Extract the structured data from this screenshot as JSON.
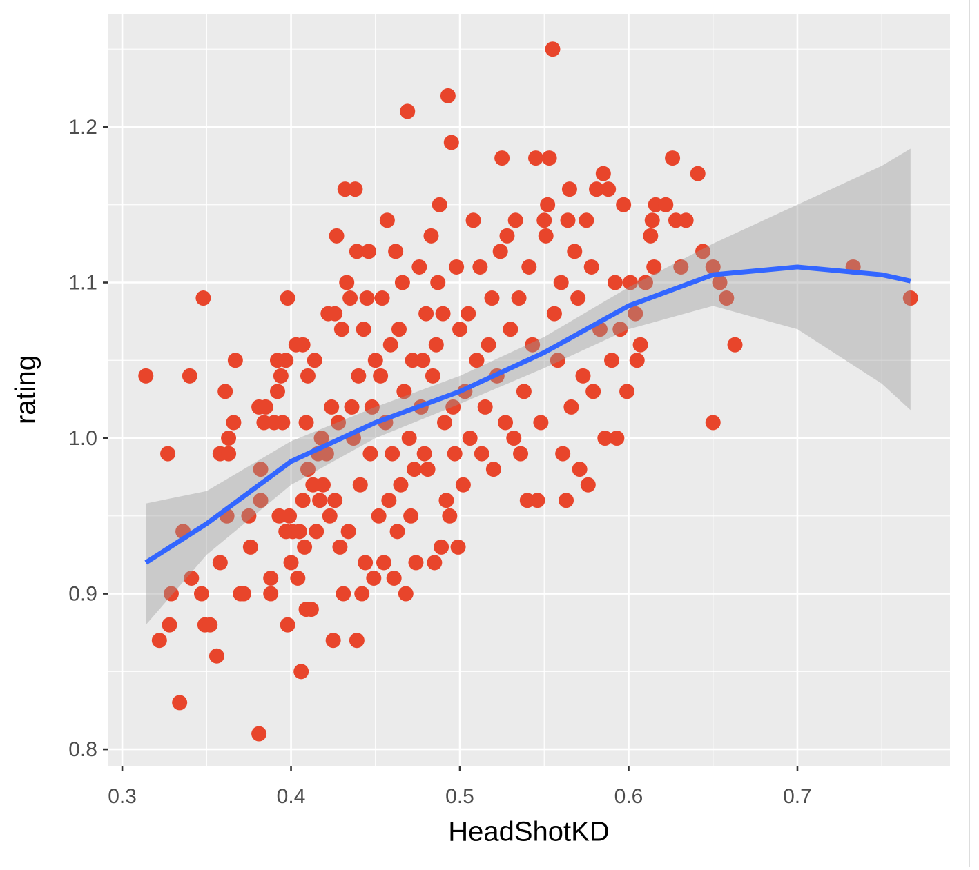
{
  "chart_data": {
    "type": "scatter",
    "x_label": "HeadShotKD",
    "y_label": "rating",
    "color": "#e8452b",
    "xlim": [
      0.2918,
      0.7904
    ],
    "ylim": [
      0.7894,
      1.2727
    ],
    "xticks": [
      0.3,
      0.4,
      0.5,
      0.6,
      0.7
    ],
    "yticks": [
      0.8,
      0.9,
      {
        "value": 1,
        "label": "1.0"
      },
      1.1,
      1.2
    ],
    "xminor": [
      0.35,
      0.45,
      0.55,
      0.65,
      0.75
    ],
    "yminor": [
      0.85,
      0.95,
      1.05,
      1.15,
      1.25
    ],
    "grid": true,
    "x": [
      0.314,
      0.327,
      0.329,
      0.328,
      0.322,
      0.334,
      0.336,
      0.34,
      0.341,
      0.347,
      0.348,
      0.349,
      0.352,
      0.356,
      0.358,
      0.358,
      0.361,
      0.362,
      0.363,
      0.363,
      0.366,
      0.367,
      0.37,
      0.372,
      0.375,
      0.376,
      0.381,
      0.382,
      0.382,
      0.381,
      0.385,
      0.384,
      0.388,
      0.388,
      0.39,
      0.392,
      0.392,
      0.393,
      0.394,
      0.395,
      0.397,
      0.397,
      0.398,
      0.398,
      0.399,
      0.4,
      0.401,
      0.403,
      0.404,
      0.405,
      0.406,
      0.407,
      0.407,
      0.408,
      0.409,
      0.409,
      0.41,
      0.41,
      0.412,
      0.413,
      0.414,
      0.415,
      0.416,
      0.417,
      0.418,
      0.419,
      0.421,
      0.422,
      0.423,
      0.424,
      0.425,
      0.426,
      0.426,
      0.427,
      0.428,
      0.429,
      0.43,
      0.431,
      0.432,
      0.433,
      0.434,
      0.435,
      0.436,
      0.437,
      0.438,
      0.439,
      0.439,
      0.44,
      0.441,
      0.442,
      0.443,
      0.444,
      0.445,
      0.446,
      0.447,
      0.448,
      0.449,
      0.45,
      0.452,
      0.453,
      0.454,
      0.455,
      0.456,
      0.457,
      0.458,
      0.459,
      0.46,
      0.461,
      0.462,
      0.463,
      0.464,
      0.465,
      0.466,
      0.467,
      0.468,
      0.469,
      0.47,
      0.471,
      0.472,
      0.473,
      0.474,
      0.476,
      0.477,
      0.478,
      0.479,
      0.48,
      0.481,
      0.483,
      0.484,
      0.485,
      0.486,
      0.487,
      0.488,
      0.489,
      0.49,
      0.491,
      0.492,
      0.493,
      0.494,
      0.495,
      0.496,
      0.497,
      0.498,
      0.499,
      0.5,
      0.502,
      0.503,
      0.505,
      0.506,
      0.508,
      0.51,
      0.512,
      0.513,
      0.515,
      0.517,
      0.519,
      0.52,
      0.522,
      0.524,
      0.525,
      0.527,
      0.528,
      0.53,
      0.532,
      0.533,
      0.535,
      0.536,
      0.538,
      0.54,
      0.541,
      0.543,
      0.545,
      0.546,
      0.548,
      0.55,
      0.551,
      0.552,
      0.553,
      0.555,
      0.556,
      0.558,
      0.56,
      0.561,
      0.563,
      0.564,
      0.565,
      0.566,
      0.568,
      0.57,
      0.571,
      0.573,
      0.575,
      0.576,
      0.578,
      0.579,
      0.581,
      0.583,
      0.585,
      0.586,
      0.588,
      0.59,
      0.592,
      0.593,
      0.595,
      0.597,
      0.599,
      0.601,
      0.604,
      0.605,
      0.607,
      0.61,
      0.613,
      0.614,
      0.615,
      0.616,
      0.622,
      0.626,
      0.628,
      0.631,
      0.634,
      0.641,
      0.644,
      0.65,
      0.65,
      0.654,
      0.658,
      0.663,
      0.733,
      0.767
    ],
    "y": [
      1.04,
      0.99,
      0.9,
      0.88,
      0.87,
      0.83,
      0.94,
      1.04,
      0.91,
      0.9,
      1.09,
      0.88,
      0.88,
      0.86,
      0.99,
      0.92,
      1.03,
      0.95,
      0.99,
      1.0,
      1.01,
      1.05,
      0.9,
      0.9,
      0.95,
      0.93,
      0.81,
      0.98,
      0.96,
      1.02,
      1.02,
      1.01,
      0.91,
      0.9,
      1.01,
      1.05,
      1.03,
      0.95,
      1.04,
      1.01,
      1.05,
      0.94,
      1.09,
      0.88,
      0.95,
      0.92,
      0.94,
      1.06,
      0.91,
      0.94,
      0.85,
      0.96,
      1.06,
      0.93,
      1.01,
      0.89,
      0.98,
      1.04,
      0.89,
      0.97,
      1.05,
      0.94,
      0.99,
      0.96,
      1.0,
      0.97,
      0.99,
      1.08,
      0.95,
      1.02,
      0.87,
      1.08,
      0.96,
      1.13,
      1.01,
      0.93,
      1.07,
      0.9,
      1.16,
      1.1,
      0.94,
      1.09,
      1.02,
      1.0,
      1.16,
      0.87,
      1.12,
      1.04,
      0.97,
      0.9,
      1.07,
      0.92,
      1.09,
      1.12,
      0.99,
      1.02,
      0.91,
      1.05,
      0.95,
      1.04,
      1.09,
      0.92,
      1.01,
      1.14,
      0.96,
      1.06,
      0.99,
      0.91,
      1.12,
      0.94,
      1.07,
      0.97,
      1.1,
      1.03,
      0.9,
      1.21,
      1.0,
      0.95,
      1.05,
      0.98,
      0.92,
      1.11,
      1.02,
      1.05,
      0.99,
      1.08,
      0.98,
      1.13,
      1.04,
      0.92,
      1.06,
      1.1,
      1.15,
      0.93,
      1.08,
      1.01,
      0.96,
      1.22,
      0.95,
      1.19,
      1.02,
      0.99,
      1.11,
      0.93,
      1.07,
      0.97,
      1.03,
      1.08,
      1.0,
      1.14,
      1.05,
      1.11,
      0.99,
      1.02,
      1.06,
      1.09,
      0.98,
      1.04,
      1.12,
      1.18,
      1.01,
      1.13,
      1.07,
      1.0,
      1.14,
      1.09,
      0.99,
      1.03,
      0.96,
      1.11,
      1.06,
      1.18,
      0.96,
      1.01,
      1.14,
      1.13,
      1.15,
      1.18,
      1.25,
      1.08,
      1.05,
      1.1,
      0.99,
      0.96,
      1.14,
      1.16,
      1.02,
      1.12,
      1.09,
      0.98,
      1.04,
      1.14,
      0.97,
      1.11,
      1.03,
      1.16,
      1.07,
      1.17,
      1.0,
      1.16,
      1.05,
      1.1,
      1.0,
      1.07,
      1.15,
      1.03,
      1.1,
      1.08,
      1.05,
      1.06,
      1.1,
      1.13,
      1.14,
      1.11,
      1.15,
      1.15,
      1.18,
      1.14,
      1.11,
      1.14,
      1.17,
      1.12,
      1.11,
      1.01,
      1.1,
      1.09,
      1.06,
      1.11,
      1.09
    ],
    "smooth": {
      "color": "#3366ff",
      "x": [
        0.314,
        0.35,
        0.4,
        0.45,
        0.5,
        0.55,
        0.6,
        0.65,
        0.7,
        0.75,
        0.767
      ],
      "y": [
        0.92,
        0.945,
        0.985,
        1.01,
        1.03,
        1.055,
        1.085,
        1.105,
        1.11,
        1.105,
        1.101
      ],
      "lower": [
        0.88,
        0.925,
        0.97,
        1.0,
        1.022,
        1.045,
        1.07,
        1.085,
        1.07,
        1.035,
        1.018
      ],
      "upper": [
        0.958,
        0.966,
        0.998,
        1.02,
        1.04,
        1.065,
        1.097,
        1.125,
        1.15,
        1.175,
        1.186
      ]
    }
  }
}
